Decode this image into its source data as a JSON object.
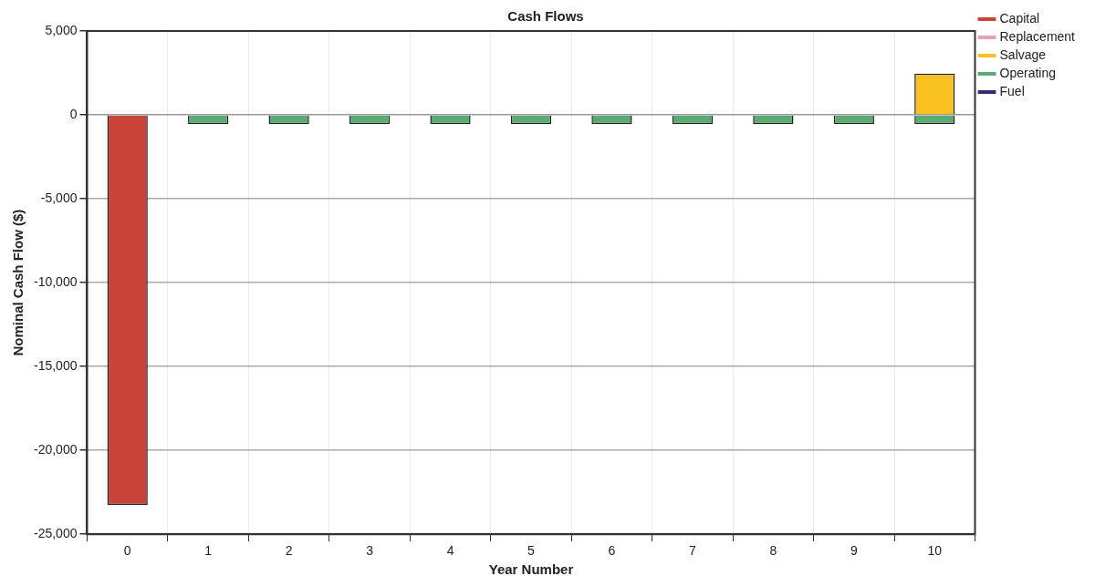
{
  "chart_data": {
    "type": "bar",
    "title": "Cash Flows",
    "xlabel": "Year Number",
    "ylabel": "Nominal Cash Flow ($)",
    "categories": [
      "0",
      "1",
      "2",
      "3",
      "4",
      "5",
      "6",
      "7",
      "8",
      "9",
      "10"
    ],
    "series": [
      {
        "name": "Capital",
        "color": "#c8443a",
        "values": [
          -23250,
          null,
          null,
          null,
          null,
          null,
          null,
          null,
          null,
          null,
          null
        ]
      },
      {
        "name": "Replacement",
        "color": "#e8a0b8",
        "values": [
          null,
          null,
          null,
          null,
          null,
          null,
          null,
          null,
          null,
          null,
          null
        ]
      },
      {
        "name": "Salvage",
        "color": "#f8c020",
        "values": [
          null,
          null,
          null,
          null,
          null,
          null,
          null,
          null,
          null,
          null,
          2460
        ]
      },
      {
        "name": "Operating",
        "color": "#5aaa72",
        "values": [
          null,
          -560,
          -560,
          -560,
          -560,
          -560,
          -560,
          -560,
          -560,
          -560,
          -560
        ]
      },
      {
        "name": "Fuel",
        "color": "#303070",
        "values": [
          null,
          null,
          null,
          null,
          null,
          null,
          null,
          null,
          null,
          null,
          null
        ]
      }
    ],
    "stacked": true,
    "ylim": [
      -25000,
      5000
    ],
    "yticks": [
      {
        "value": -25000,
        "label": "-25,000"
      },
      {
        "value": -20000,
        "label": "-20,000"
      },
      {
        "value": -15000,
        "label": "-15,000"
      },
      {
        "value": -10000,
        "label": "-10,000"
      },
      {
        "value": -5000,
        "label": "-5,000"
      },
      0,
      {
        "value": 5000,
        "label": "5,000"
      }
    ],
    "grid": true,
    "legend": "top right"
  }
}
